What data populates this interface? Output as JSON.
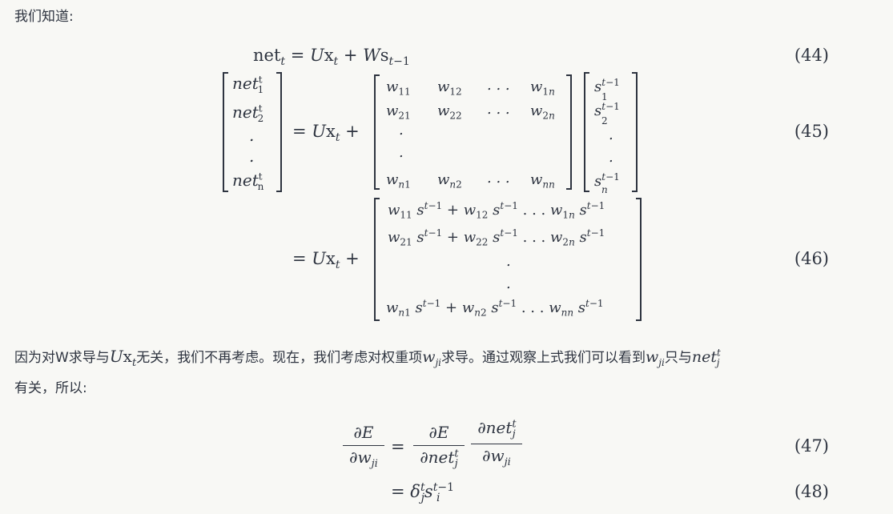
{
  "intro": "我们知道:",
  "eq44": {
    "number": "(44)"
  },
  "eq45": {
    "number": "(45)",
    "matrix": [
      [
        "w11",
        "w12",
        "...",
        "w1n"
      ],
      [
        "w21",
        "w22",
        "...",
        "w2n"
      ],
      [
        ".",
        "",
        "",
        ""
      ],
      [
        ".",
        "",
        "",
        ""
      ],
      [
        "wn1",
        "wn2",
        "...",
        "wnn"
      ]
    ]
  },
  "eq46": {
    "number": "(46)"
  },
  "para2": {
    "part1": "因为对W求导与",
    "part2": "无关，我们不再考虑。现在，我们考虑对权重项",
    "part3": "求导。通过观察上式我们可以看到",
    "part4": "只与",
    "line2": "有关，所以:"
  },
  "eq47": {
    "number": "(47)"
  },
  "eq48": {
    "number": "(48)"
  }
}
